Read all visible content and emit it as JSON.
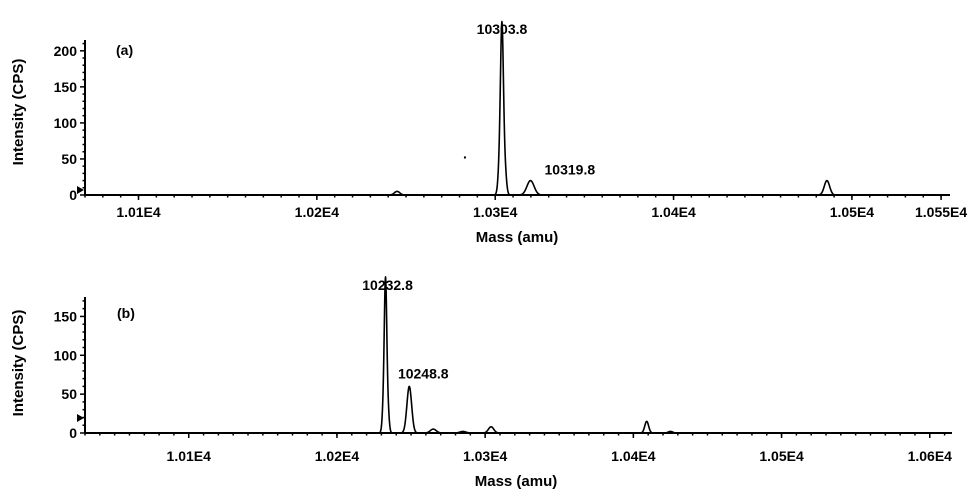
{
  "chart_data": [
    {
      "type": "line",
      "panel_label": "(a)",
      "xlabel": "Mass (amu)",
      "ylabel": "Intensity (CPS)",
      "xlim": [
        10070,
        10555
      ],
      "ylim": [
        0,
        215
      ],
      "xticks": [
        {
          "value": 10100,
          "label": "1.01E4"
        },
        {
          "value": 10200,
          "label": "1.02E4"
        },
        {
          "value": 10300,
          "label": "1.03E4"
        },
        {
          "value": 10400,
          "label": "1.04E4"
        },
        {
          "value": 10500,
          "label": "1.05E4"
        },
        {
          "value": 10550,
          "label": "1.055E4"
        }
      ],
      "yticks": [
        0,
        50,
        100,
        150,
        200
      ],
      "peaks": [
        {
          "mass": 10245,
          "intensity": 5,
          "width": 1.5
        },
        {
          "mass": 10302.6,
          "intensity": 45,
          "width": 0.9
        },
        {
          "mass": 10303.8,
          "intensity": 212,
          "width": 0.8
        },
        {
          "mass": 10305.3,
          "intensity": 40,
          "width": 0.9
        },
        {
          "mass": 10319.8,
          "intensity": 20,
          "width": 2.0
        },
        {
          "mass": 10486,
          "intensity": 20,
          "width": 1.5
        }
      ],
      "annotations": [
        {
          "text": "10303.8",
          "mass": 10303.8,
          "intensity": 212
        },
        {
          "text": "10319.8",
          "mass": 10319.8,
          "intensity": 20
        }
      ]
    },
    {
      "type": "line",
      "panel_label": "(b)",
      "xlabel": "Mass (amu)",
      "ylabel": "Intensity (CPS)",
      "xlim": [
        10030,
        10615
      ],
      "ylim": [
        0,
        175
      ],
      "xticks": [
        {
          "value": 10100,
          "label": "1.01E4"
        },
        {
          "value": 10200,
          "label": "1.02E4"
        },
        {
          "value": 10300,
          "label": "1.03E4"
        },
        {
          "value": 10400,
          "label": "1.04E4"
        },
        {
          "value": 10500,
          "label": "1.05E4"
        },
        {
          "value": 10600,
          "label": "1.06E4"
        }
      ],
      "yticks": [
        0,
        50,
        100,
        150
      ],
      "peaks": [
        {
          "mass": 10231.6,
          "intensity": 40,
          "width": 0.9
        },
        {
          "mass": 10232.8,
          "intensity": 174,
          "width": 0.8
        },
        {
          "mass": 10234.2,
          "intensity": 35,
          "width": 0.9
        },
        {
          "mass": 10248.8,
          "intensity": 60,
          "width": 1.6
        },
        {
          "mass": 10265,
          "intensity": 5,
          "width": 2.0
        },
        {
          "mass": 10285,
          "intensity": 2,
          "width": 2.0
        },
        {
          "mass": 10304,
          "intensity": 8,
          "width": 1.8
        },
        {
          "mass": 10409,
          "intensity": 15,
          "width": 1.3
        },
        {
          "mass": 10425,
          "intensity": 2,
          "width": 1.5
        }
      ],
      "annotations": [
        {
          "text": "10232.8",
          "mass": 10232.8,
          "intensity": 174
        },
        {
          "text": "10248.8",
          "mass": 10248.8,
          "intensity": 60
        }
      ]
    }
  ]
}
